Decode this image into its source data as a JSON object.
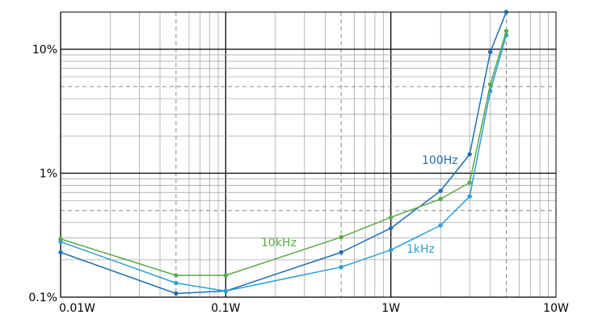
{
  "chart_data": {
    "type": "line",
    "title": "",
    "xlabel": "",
    "ylabel": "",
    "x_scale": "log",
    "y_scale": "log",
    "xlim": [
      0.01,
      10
    ],
    "ylim": [
      0.1,
      20
    ],
    "x_unit": "W",
    "y_unit": "%",
    "x_ticks": [
      {
        "value": 0.01,
        "label": "0.01W"
      },
      {
        "value": 0.1,
        "label": "0.1W"
      },
      {
        "value": 1,
        "label": "1W"
      },
      {
        "value": 10,
        "label": "10W"
      }
    ],
    "y_ticks": [
      {
        "value": 0.1,
        "label": "0.1%"
      },
      {
        "value": 1,
        "label": "1%"
      },
      {
        "value": 10,
        "label": "10%"
      }
    ],
    "grid": true,
    "legend": "inline labels near curves",
    "series": [
      {
        "name": "100Hz",
        "color": "#1f6fb2",
        "points": [
          [
            0.01,
            0.23
          ],
          [
            0.05,
            0.107
          ],
          [
            0.1,
            0.112
          ],
          [
            0.5,
            0.23
          ],
          [
            1,
            0.36
          ],
          [
            2,
            0.72
          ],
          [
            3,
            1.42
          ],
          [
            4,
            9.5
          ],
          [
            5,
            20
          ]
        ]
      },
      {
        "name": "1kHz",
        "color": "#2aa0d8",
        "points": [
          [
            0.01,
            0.28
          ],
          [
            0.05,
            0.13
          ],
          [
            0.1,
            0.112
          ],
          [
            0.5,
            0.175
          ],
          [
            1,
            0.24
          ],
          [
            2,
            0.38
          ],
          [
            3,
            0.65
          ],
          [
            4,
            4.6
          ],
          [
            5,
            13
          ]
        ]
      },
      {
        "name": "10kHz",
        "color": "#5aaa46",
        "points": [
          [
            0.01,
            0.295
          ],
          [
            0.05,
            0.15
          ],
          [
            0.1,
            0.15
          ],
          [
            0.5,
            0.305
          ],
          [
            1,
            0.44
          ],
          [
            2,
            0.62
          ],
          [
            3,
            0.84
          ],
          [
            4,
            5.2
          ],
          [
            5,
            14
          ]
        ]
      }
    ],
    "annotations": [
      {
        "text": "100Hz",
        "series": "100Hz"
      },
      {
        "text": "1kHz",
        "series": "1kHz"
      },
      {
        "text": "10kHz",
        "series": "10kHz"
      }
    ]
  }
}
